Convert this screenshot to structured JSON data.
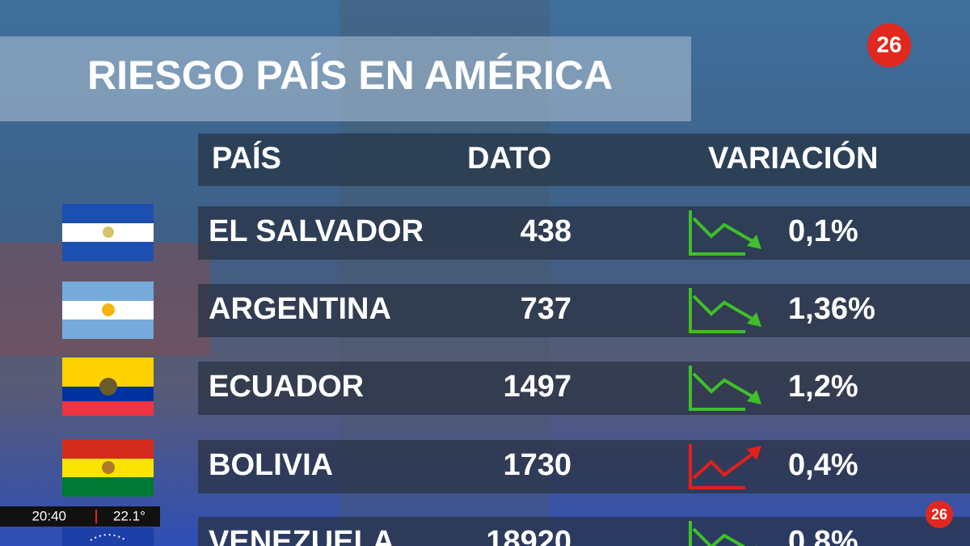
{
  "header": {
    "title": "RIESGO PAÍS EN AMÉRICA",
    "logo": "26"
  },
  "table": {
    "columns": [
      "PAÍS",
      "DATO",
      "VARIACIÓN"
    ],
    "rows": [
      {
        "country": "EL SALVADOR",
        "dato": "438",
        "variacion": "0,1%",
        "trend": "down"
      },
      {
        "country": "ARGENTINA",
        "dato": "737",
        "variacion": "1,36%",
        "trend": "down"
      },
      {
        "country": "ECUADOR",
        "dato": "1497",
        "variacion": "1,2%",
        "trend": "down"
      },
      {
        "country": "BOLIVIA",
        "dato": "1730",
        "variacion": "0,4%",
        "trend": "up"
      },
      {
        "country": "VENEZUELA",
        "dato": "18920",
        "variacion": "0,8%",
        "trend": "down"
      }
    ]
  },
  "footer": {
    "time": "20:40",
    "temperature": "22.1°",
    "logo": "26"
  }
}
